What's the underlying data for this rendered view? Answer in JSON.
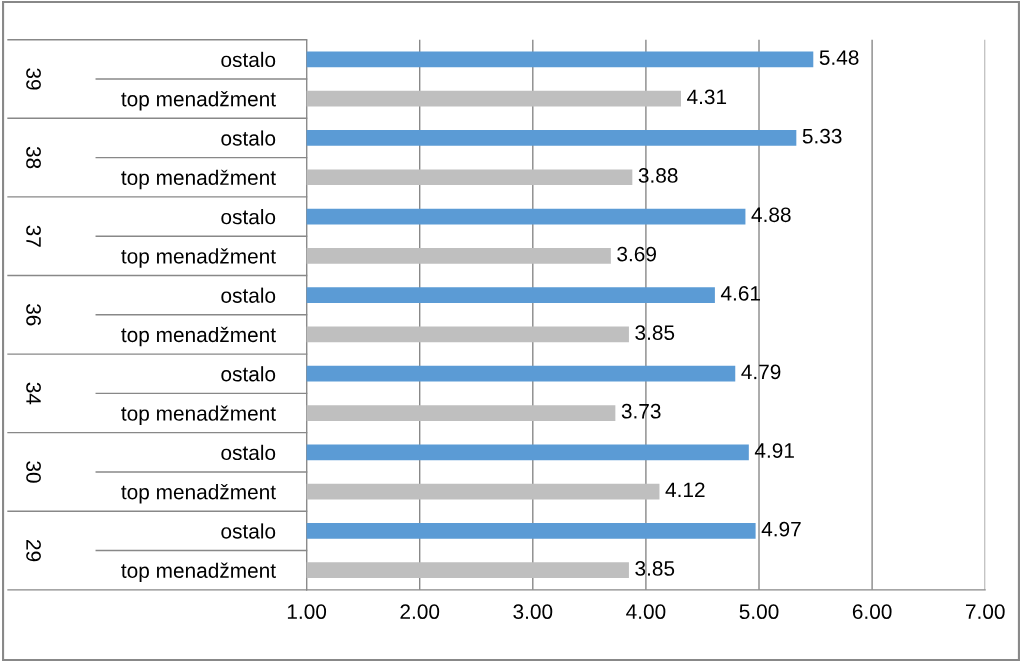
{
  "chart_data": {
    "type": "bar",
    "orientation": "horizontal",
    "categories": [
      "ostalo",
      "top menadžment",
      "ostalo",
      "top menadžment",
      "ostalo",
      "top menadžment",
      "ostalo",
      "top menadžment",
      "ostalo",
      "top menadžment",
      "ostalo",
      "top menadžment",
      "ostalo",
      "top menadžment"
    ],
    "values": [
      5.48,
      4.31,
      5.33,
      3.88,
      4.88,
      3.69,
      4.61,
      3.85,
      4.79,
      3.73,
      4.91,
      4.12,
      4.97,
      3.85
    ],
    "colors": [
      "#5b9bd5",
      "#bfbfbf",
      "#5b9bd5",
      "#bfbfbf",
      "#5b9bd5",
      "#bfbfbf",
      "#5b9bd5",
      "#bfbfbf",
      "#5b9bd5",
      "#bfbfbf",
      "#5b9bd5",
      "#bfbfbf",
      "#5b9bd5",
      "#bfbfbf"
    ],
    "value_labels": [
      "5.48",
      "4.31",
      "5.33",
      "3.88",
      "4.88",
      "3.69",
      "4.61",
      "3.85",
      "4.79",
      "3.73",
      "4.91",
      "4.12",
      "4.97",
      "3.85"
    ],
    "annotations": [
      "39",
      "38",
      "37",
      "36",
      "34",
      "30",
      "29"
    ],
    "xlim": [
      1,
      7
    ],
    "xticks": [
      {
        "value": 1,
        "label": "1.00"
      },
      {
        "value": 2,
        "label": "2.00"
      },
      {
        "value": 3,
        "label": "3.00"
      },
      {
        "value": 4,
        "label": "4.00"
      },
      {
        "value": 5,
        "label": "5.00"
      },
      {
        "value": 6,
        "label": "6.00"
      },
      {
        "value": 7,
        "label": "7.00"
      }
    ],
    "grid": "x"
  }
}
